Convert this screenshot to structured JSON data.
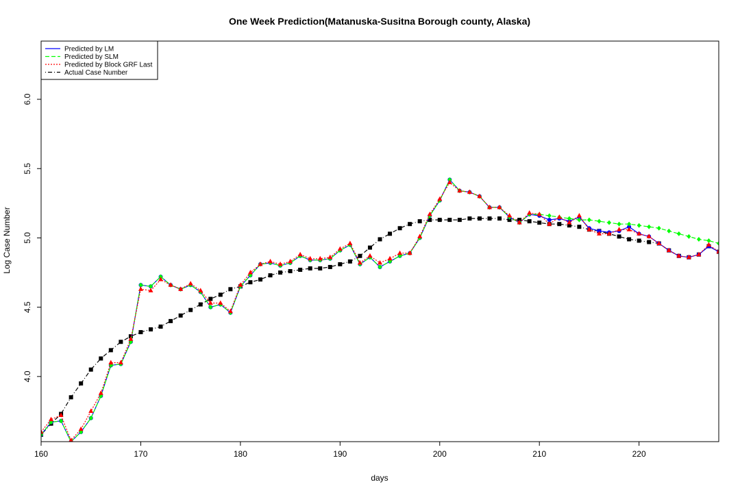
{
  "chart_data": {
    "type": "line",
    "title": "One Week Prediction(Matanuska-Susitna Borough county, Alaska)",
    "xlabel": "days",
    "ylabel": "Log Case Number",
    "xlim": [
      160,
      228
    ],
    "ylim": [
      3.53,
      6.42
    ],
    "xticks": [
      160,
      170,
      180,
      190,
      200,
      210,
      220
    ],
    "xtick_labels": [
      "160",
      "170",
      "180",
      "190",
      "200",
      "210",
      "220"
    ],
    "yticks": [
      4.0,
      4.5,
      5.0,
      5.5,
      6.0
    ],
    "ytick_labels": [
      "4.0",
      "4.5",
      "5.0",
      "5.5",
      "6.0"
    ],
    "legend_position": "top-left",
    "legend": [
      {
        "label": "Predicted by LM",
        "color": "#0000ff",
        "dash": "solid"
      },
      {
        "label": "Predicted by SLM",
        "color": "#00ff00",
        "dash": "dashed"
      },
      {
        "label": "Predicted by Block GRF Last",
        "color": "#ff0000",
        "dash": "dotted"
      },
      {
        "label": "Actual Case Number",
        "color": "#000000",
        "dash": "dotdash"
      }
    ],
    "series": [
      {
        "name": "Predicted by LM",
        "color": "#0000ff",
        "marker": "circle",
        "x": [
          160,
          161,
          162,
          163,
          164,
          165,
          166,
          167,
          168,
          169,
          170,
          171,
          172,
          173,
          174,
          175,
          176,
          177,
          178,
          179,
          180,
          181,
          182,
          183,
          184,
          185,
          186,
          187,
          188,
          189,
          190,
          191,
          192,
          193,
          194,
          195,
          196,
          197,
          198,
          199,
          200,
          201,
          202,
          203,
          204,
          205,
          206,
          207,
          208,
          209,
          210,
          211,
          212,
          213,
          214,
          215,
          216,
          217,
          218,
          219,
          220,
          221,
          222,
          223,
          224,
          225,
          226,
          227,
          228
        ],
        "y": [
          3.58,
          3.67,
          3.68,
          3.53,
          3.6,
          3.7,
          3.86,
          4.08,
          4.09,
          4.25,
          4.66,
          4.65,
          4.72,
          4.66,
          4.63,
          4.66,
          4.61,
          4.5,
          4.52,
          4.46,
          4.65,
          4.73,
          4.81,
          4.82,
          4.8,
          4.82,
          4.87,
          4.84,
          4.84,
          4.85,
          4.91,
          4.95,
          4.81,
          4.86,
          4.79,
          4.83,
          4.87,
          4.89,
          5.0,
          5.16,
          5.27,
          5.42,
          5.34,
          5.33,
          5.3,
          5.22,
          5.22,
          5.15,
          5.11,
          5.17,
          5.16,
          5.13,
          5.14,
          5.12,
          5.15,
          5.07,
          5.05,
          5.04,
          5.05,
          5.08,
          5.03,
          5.01,
          4.96,
          4.91,
          4.87,
          4.86,
          4.88,
          4.94,
          4.9
        ]
      },
      {
        "name": "Predicted by SLM",
        "color": "#00ff00",
        "marker": "diamond",
        "x": [
          160,
          161,
          162,
          163,
          164,
          165,
          166,
          167,
          168,
          169,
          170,
          171,
          172,
          173,
          174,
          175,
          176,
          177,
          178,
          179,
          180,
          181,
          182,
          183,
          184,
          185,
          186,
          187,
          188,
          189,
          190,
          191,
          192,
          193,
          194,
          195,
          196,
          197,
          198,
          199,
          200,
          201,
          202,
          203,
          204,
          205,
          206,
          207,
          208,
          209,
          210,
          211,
          212,
          213,
          214,
          215,
          216,
          217,
          218,
          219,
          220,
          221,
          222,
          223,
          224,
          225,
          226,
          227,
          228
        ],
        "y": [
          3.58,
          3.67,
          3.68,
          3.53,
          3.6,
          3.7,
          3.86,
          4.08,
          4.09,
          4.25,
          4.66,
          4.65,
          4.72,
          4.66,
          4.63,
          4.66,
          4.61,
          4.5,
          4.52,
          4.46,
          4.65,
          4.73,
          4.81,
          4.82,
          4.8,
          4.82,
          4.87,
          4.84,
          4.84,
          4.85,
          4.91,
          4.95,
          4.81,
          4.86,
          4.79,
          4.83,
          4.87,
          4.89,
          5.0,
          5.16,
          5.27,
          5.42,
          5.34,
          5.33,
          5.3,
          5.22,
          5.22,
          5.15,
          5.11,
          5.17,
          5.17,
          5.16,
          5.15,
          5.14,
          5.13,
          5.13,
          5.12,
          5.11,
          5.1,
          5.1,
          5.09,
          5.08,
          5.07,
          5.05,
          5.03,
          5.01,
          4.99,
          4.98,
          4.96
        ]
      },
      {
        "name": "Predicted by Block GRF Last",
        "color": "#ff0000",
        "marker": "triangle",
        "x": [
          160,
          161,
          162,
          163,
          164,
          165,
          166,
          167,
          168,
          169,
          170,
          171,
          172,
          173,
          174,
          175,
          176,
          177,
          178,
          179,
          180,
          181,
          182,
          183,
          184,
          185,
          186,
          187,
          188,
          189,
          190,
          191,
          192,
          193,
          194,
          195,
          196,
          197,
          198,
          199,
          200,
          201,
          202,
          203,
          204,
          205,
          206,
          207,
          208,
          209,
          210,
          211,
          212,
          213,
          214,
          215,
          216,
          217,
          218,
          219,
          220,
          221,
          222,
          223,
          224,
          225,
          226,
          227,
          228
        ],
        "y": [
          3.6,
          3.69,
          3.72,
          3.54,
          3.62,
          3.75,
          3.88,
          4.1,
          4.1,
          4.27,
          4.63,
          4.62,
          4.7,
          4.66,
          4.63,
          4.67,
          4.62,
          4.53,
          4.53,
          4.47,
          4.66,
          4.75,
          4.81,
          4.83,
          4.81,
          4.83,
          4.88,
          4.85,
          4.85,
          4.86,
          4.92,
          4.96,
          4.82,
          4.87,
          4.82,
          4.85,
          4.89,
          4.89,
          5.01,
          5.17,
          5.28,
          5.4,
          5.34,
          5.33,
          5.3,
          5.22,
          5.22,
          5.16,
          5.11,
          5.18,
          5.17,
          5.1,
          5.15,
          5.11,
          5.16,
          5.06,
          5.03,
          5.03,
          5.06,
          5.06,
          5.03,
          5.01,
          4.96,
          4.91,
          4.87,
          4.86,
          4.88,
          4.95,
          4.9
        ]
      },
      {
        "name": "Actual Case Number",
        "color": "#000000",
        "marker": "square",
        "x": [
          160,
          161,
          162,
          163,
          164,
          165,
          166,
          167,
          168,
          169,
          170,
          171,
          172,
          173,
          174,
          175,
          176,
          177,
          178,
          179,
          180,
          181,
          182,
          183,
          184,
          185,
          186,
          187,
          188,
          189,
          190,
          191,
          192,
          193,
          194,
          195,
          196,
          197,
          198,
          199,
          200,
          201,
          202,
          203,
          204,
          205,
          206,
          207,
          208,
          209,
          210,
          211,
          212,
          213,
          214,
          215,
          216,
          217,
          218,
          219,
          220,
          221,
          222,
          223,
          224,
          225,
          226,
          227,
          228
        ],
        "y": [
          3.58,
          3.66,
          3.73,
          3.85,
          3.95,
          4.05,
          4.13,
          4.19,
          4.25,
          4.29,
          4.32,
          4.34,
          4.36,
          4.4,
          4.44,
          4.48,
          4.52,
          4.56,
          4.59,
          4.63,
          4.65,
          4.68,
          4.7,
          4.73,
          4.75,
          4.76,
          4.77,
          4.78,
          4.78,
          4.79,
          4.81,
          4.83,
          4.87,
          4.93,
          4.99,
          5.03,
          5.07,
          5.1,
          5.12,
          5.13,
          5.13,
          5.13,
          5.13,
          5.14,
          5.14,
          5.14,
          5.14,
          5.13,
          5.13,
          5.12,
          5.11,
          5.1,
          5.1,
          5.09,
          5.08,
          5.06,
          5.05,
          5.03,
          5.01,
          4.99,
          4.98,
          4.97,
          4.96,
          4.91,
          4.87,
          4.86,
          4.88,
          4.94,
          4.9
        ]
      }
    ]
  }
}
